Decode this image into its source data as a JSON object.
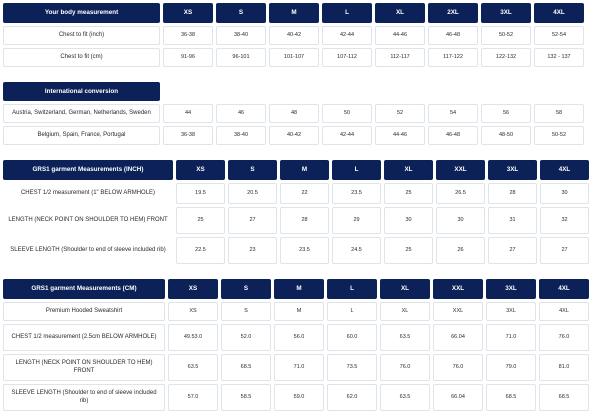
{
  "body_measurement": {
    "title": "Your body measurement",
    "sizes": [
      "XS",
      "S",
      "M",
      "L",
      "XL",
      "2XL",
      "3XL",
      "4XL"
    ],
    "rows": [
      {
        "label": "Chest to fit (inch)",
        "values": [
          "36-38",
          "38-40",
          "40-42",
          "42-44",
          "44-46",
          "46-48",
          "50-52",
          "52-54"
        ]
      },
      {
        "label": "Chest to fit (cm)",
        "values": [
          "91-96",
          "96-101",
          "101-107",
          "107-112",
          "112-117",
          "117-122",
          "122-132",
          "132 - 137"
        ]
      }
    ]
  },
  "international": {
    "title": "International conversion",
    "rows": [
      {
        "label": "Austria, Switzerland, German, Netherlands, Sweden",
        "values": [
          "44",
          "46",
          "48",
          "50",
          "52",
          "54",
          "56",
          "58"
        ]
      },
      {
        "label": "Belgium, Spain, France, Portugal",
        "values": [
          "36-38",
          "38-40",
          "40-42",
          "42-44",
          "44-46",
          "46-48",
          "48-50",
          "50-52"
        ]
      }
    ]
  },
  "garment_inch": {
    "title": "GRS1 garment Measurements (INCH)",
    "sizes": [
      "XS",
      "S",
      "M",
      "L",
      "XL",
      "XXL",
      "3XL",
      "4XL"
    ],
    "rows": [
      {
        "label": "CHEST 1/2 measurement (1\" BELOW ARMHOLE)",
        "values": [
          "19.5",
          "20.5",
          "22",
          "23.5",
          "25",
          "26.5",
          "28",
          "30"
        ]
      },
      {
        "label": "LENGTH (NECK POINT ON SHOULDER TO HEM) FRONT",
        "values": [
          "25",
          "27",
          "28",
          "29",
          "30",
          "30",
          "31",
          "32"
        ]
      },
      {
        "label": "SLEEVE LENGTH (Shoulder to end of sleeve included rib)",
        "values": [
          "22.5",
          "23",
          "23.5",
          "24.5",
          "25",
          "26",
          "27",
          "27"
        ]
      }
    ]
  },
  "garment_cm": {
    "title": "GRS1 garment Measurements (CM)",
    "sizes": [
      "XS",
      "S",
      "M",
      "L",
      "XL",
      "XXL",
      "3XL",
      "4XL"
    ],
    "rows": [
      {
        "label": "Premium Hooded Sweatshirt",
        "values": [
          "XS",
          "S",
          "M",
          "L",
          "XL",
          "XXL",
          "3XL",
          "4XL"
        ]
      },
      {
        "label": "CHEST 1/2 measurement (2.5cm BELOW ARMHOLE)",
        "values": [
          "49.53.0",
          "52.0",
          "56.0",
          "60.0",
          "63.5",
          "66.04",
          "71.0",
          "76.0"
        ]
      },
      {
        "label": "LENGTH (NECK POINT ON SHOULDER TO HEM) FRONT",
        "values": [
          "63.5",
          "68.5",
          "71.0",
          "73.5",
          "76.0",
          "76.0",
          "79.0",
          "81.0"
        ]
      },
      {
        "label": "SLEEVE LENGTH (Shoulder to end of sleeve included rib)",
        "values": [
          "57.0",
          "58.5",
          "59.0",
          "62.0",
          "63.5",
          "66.04",
          "68.5",
          "68.5"
        ]
      }
    ]
  }
}
